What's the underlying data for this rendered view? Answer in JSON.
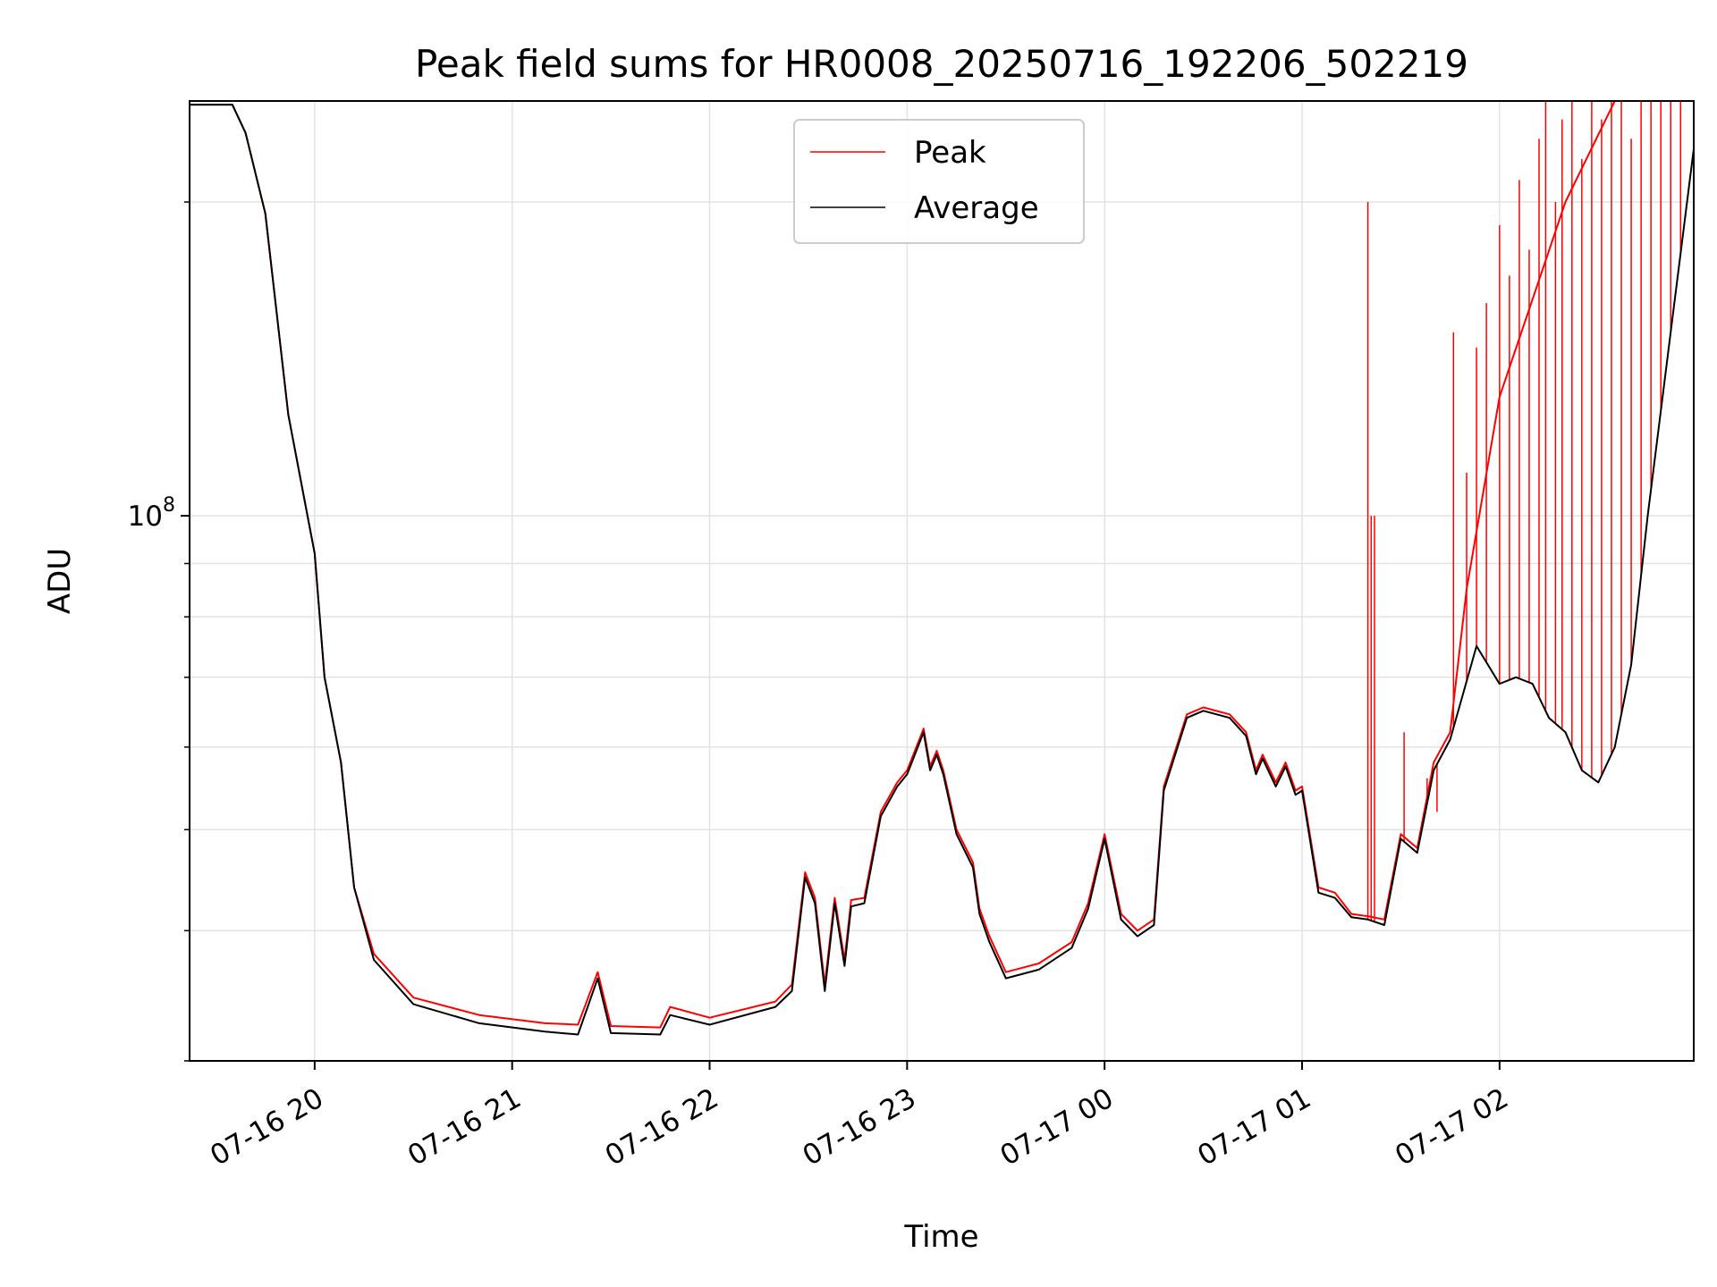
{
  "chart_data": {
    "type": "line",
    "title": "Peak field sums for HR0008_20250716_192206_502219",
    "xlabel": "Time",
    "ylabel": "ADU",
    "yscale": "log",
    "grid": true,
    "legend_position": "top-center",
    "x_tick_labels": [
      "07-16 20",
      "07-16 21",
      "07-16 22",
      "07-16 23",
      "07-17 00",
      "07-17 01",
      "07-17 02"
    ],
    "y_tick_label": {
      "base": "10",
      "exponent": "8"
    },
    "xlim": [
      "2025-07-16T19:22",
      "2025-07-17T02:59"
    ],
    "ylim": [
      30000000,
      250000000
    ],
    "series": [
      {
        "name": "Peak",
        "color": "#ff0000",
        "points": [
          [
            "2025-07-16T19:22",
            248000000
          ],
          [
            "2025-07-16T19:35",
            248000000
          ],
          [
            "2025-07-16T19:39",
            233000000
          ],
          [
            "2025-07-16T19:45",
            195000000
          ],
          [
            "2025-07-16T19:52",
            125000000
          ],
          [
            "2025-07-16T20:00",
            92000000
          ],
          [
            "2025-07-16T20:03",
            70000000
          ],
          [
            "2025-07-16T20:08",
            58000000
          ],
          [
            "2025-07-16T20:12",
            44000000
          ],
          [
            "2025-07-16T20:18",
            38000000
          ],
          [
            "2025-07-16T20:30",
            34500000
          ],
          [
            "2025-07-16T20:50",
            33200000
          ],
          [
            "2025-07-16T21:10",
            32600000
          ],
          [
            "2025-07-16T21:20",
            32500000
          ],
          [
            "2025-07-16T21:26",
            36500000
          ],
          [
            "2025-07-16T21:30",
            32400000
          ],
          [
            "2025-07-16T21:45",
            32300000
          ],
          [
            "2025-07-16T21:48",
            33800000
          ],
          [
            "2025-07-16T22:00",
            33000000
          ],
          [
            "2025-07-16T22:20",
            34200000
          ],
          [
            "2025-07-16T22:25",
            35500000
          ],
          [
            "2025-07-16T22:29",
            45500000
          ],
          [
            "2025-07-16T22:32",
            43000000
          ],
          [
            "2025-07-16T22:35",
            35500000
          ],
          [
            "2025-07-16T22:38",
            43000000
          ],
          [
            "2025-07-16T22:41",
            37500000
          ],
          [
            "2025-07-16T22:43",
            42800000
          ],
          [
            "2025-07-16T22:47",
            43000000
          ],
          [
            "2025-07-16T22:52",
            52000000
          ],
          [
            "2025-07-16T22:57",
            55500000
          ],
          [
            "2025-07-16T23:00",
            57000000
          ],
          [
            "2025-07-16T23:05",
            62500000
          ],
          [
            "2025-07-16T23:07",
            57500000
          ],
          [
            "2025-07-16T23:09",
            59500000
          ],
          [
            "2025-07-16T23:11",
            57000000
          ],
          [
            "2025-07-16T23:15",
            50000000
          ],
          [
            "2025-07-16T23:20",
            46500000
          ],
          [
            "2025-07-16T23:22",
            42000000
          ],
          [
            "2025-07-16T23:25",
            39500000
          ],
          [
            "2025-07-16T23:30",
            36500000
          ],
          [
            "2025-07-16T23:40",
            37200000
          ],
          [
            "2025-07-16T23:50",
            39000000
          ],
          [
            "2025-07-16T23:55",
            42500000
          ],
          [
            "2025-07-17T00:00",
            49500000
          ],
          [
            "2025-07-17T00:05",
            41500000
          ],
          [
            "2025-07-17T00:10",
            40000000
          ],
          [
            "2025-07-17T00:15",
            41000000
          ],
          [
            "2025-07-17T00:18",
            55000000
          ],
          [
            "2025-07-17T00:25",
            64500000
          ],
          [
            "2025-07-17T00:30",
            65500000
          ],
          [
            "2025-07-17T00:38",
            64500000
          ],
          [
            "2025-07-17T00:43",
            62000000
          ],
          [
            "2025-07-17T00:46",
            57000000
          ],
          [
            "2025-07-17T00:48",
            59000000
          ],
          [
            "2025-07-17T00:52",
            55500000
          ],
          [
            "2025-07-17T00:55",
            58000000
          ],
          [
            "2025-07-17T00:58",
            54500000
          ],
          [
            "2025-07-17T01:00",
            55000000
          ],
          [
            "2025-07-17T01:05",
            44000000
          ],
          [
            "2025-07-17T01:10",
            43500000
          ],
          [
            "2025-07-17T01:15",
            41500000
          ],
          [
            "2025-07-17T01:20",
            41300000
          ],
          [
            "2025-07-17T01:25",
            41000000
          ],
          [
            "2025-07-17T01:30",
            49500000
          ],
          [
            "2025-07-17T01:35",
            48000000
          ],
          [
            "2025-07-17T01:40",
            58000000
          ],
          [
            "2025-07-17T01:45",
            62000000
          ],
          [
            "2025-07-17T01:50",
            85000000
          ],
          [
            "2025-07-17T02:00",
            130000000
          ],
          [
            "2025-07-17T02:20",
            200000000
          ],
          [
            "2025-07-17T02:35",
            250000000
          ],
          [
            "2025-07-17T02:59",
            250000000
          ]
        ]
      },
      {
        "name": "Average",
        "color": "#000000",
        "points": [
          [
            "2025-07-16T19:22",
            248000000
          ],
          [
            "2025-07-16T19:35",
            248000000
          ],
          [
            "2025-07-16T19:39",
            233000000
          ],
          [
            "2025-07-16T19:45",
            195000000
          ],
          [
            "2025-07-16T19:52",
            125000000
          ],
          [
            "2025-07-16T20:00",
            92000000
          ],
          [
            "2025-07-16T20:03",
            70000000
          ],
          [
            "2025-07-16T20:08",
            58000000
          ],
          [
            "2025-07-16T20:12",
            44000000
          ],
          [
            "2025-07-16T20:18",
            37500000
          ],
          [
            "2025-07-16T20:30",
            34000000
          ],
          [
            "2025-07-16T20:50",
            32600000
          ],
          [
            "2025-07-16T21:10",
            32000000
          ],
          [
            "2025-07-16T21:20",
            31800000
          ],
          [
            "2025-07-16T21:26",
            36000000
          ],
          [
            "2025-07-16T21:30",
            31900000
          ],
          [
            "2025-07-16T21:45",
            31800000
          ],
          [
            "2025-07-16T21:48",
            33200000
          ],
          [
            "2025-07-16T22:00",
            32500000
          ],
          [
            "2025-07-16T22:20",
            33800000
          ],
          [
            "2025-07-16T22:25",
            35000000
          ],
          [
            "2025-07-16T22:29",
            45000000
          ],
          [
            "2025-07-16T22:32",
            42500000
          ],
          [
            "2025-07-16T22:35",
            35000000
          ],
          [
            "2025-07-16T22:38",
            42500000
          ],
          [
            "2025-07-16T22:41",
            37000000
          ],
          [
            "2025-07-16T22:43",
            42200000
          ],
          [
            "2025-07-16T22:47",
            42500000
          ],
          [
            "2025-07-16T22:52",
            51500000
          ],
          [
            "2025-07-16T22:57",
            55000000
          ],
          [
            "2025-07-16T23:00",
            56500000
          ],
          [
            "2025-07-16T23:05",
            62000000
          ],
          [
            "2025-07-16T23:07",
            57000000
          ],
          [
            "2025-07-16T23:09",
            59000000
          ],
          [
            "2025-07-16T23:11",
            56500000
          ],
          [
            "2025-07-16T23:15",
            49500000
          ],
          [
            "2025-07-16T23:20",
            46000000
          ],
          [
            "2025-07-16T23:22",
            41500000
          ],
          [
            "2025-07-16T23:25",
            39000000
          ],
          [
            "2025-07-16T23:30",
            36000000
          ],
          [
            "2025-07-16T23:40",
            36700000
          ],
          [
            "2025-07-16T23:50",
            38500000
          ],
          [
            "2025-07-16T23:55",
            42000000
          ],
          [
            "2025-07-17T00:00",
            49000000
          ],
          [
            "2025-07-17T00:05",
            41000000
          ],
          [
            "2025-07-17T00:10",
            39500000
          ],
          [
            "2025-07-17T00:15",
            40500000
          ],
          [
            "2025-07-17T00:18",
            54500000
          ],
          [
            "2025-07-17T00:25",
            64000000
          ],
          [
            "2025-07-17T00:30",
            65000000
          ],
          [
            "2025-07-17T00:38",
            64000000
          ],
          [
            "2025-07-17T00:43",
            61500000
          ],
          [
            "2025-07-17T00:46",
            56500000
          ],
          [
            "2025-07-17T00:48",
            58500000
          ],
          [
            "2025-07-17T00:52",
            55000000
          ],
          [
            "2025-07-17T00:55",
            57500000
          ],
          [
            "2025-07-17T00:58",
            54000000
          ],
          [
            "2025-07-17T01:00",
            54500000
          ],
          [
            "2025-07-17T01:05",
            43500000
          ],
          [
            "2025-07-17T01:10",
            43000000
          ],
          [
            "2025-07-17T01:15",
            41200000
          ],
          [
            "2025-07-17T01:20",
            41000000
          ],
          [
            "2025-07-17T01:25",
            40500000
          ],
          [
            "2025-07-17T01:30",
            49000000
          ],
          [
            "2025-07-17T01:35",
            47500000
          ],
          [
            "2025-07-17T01:40",
            57000000
          ],
          [
            "2025-07-17T01:45",
            61000000
          ],
          [
            "2025-07-17T01:53",
            75000000
          ],
          [
            "2025-07-17T02:00",
            69000000
          ],
          [
            "2025-07-17T02:05",
            70000000
          ],
          [
            "2025-07-17T02:10",
            69000000
          ],
          [
            "2025-07-17T02:15",
            64000000
          ],
          [
            "2025-07-17T02:20",
            62000000
          ],
          [
            "2025-07-17T02:25",
            57000000
          ],
          [
            "2025-07-17T02:30",
            55500000
          ],
          [
            "2025-07-17T02:35",
            60000000
          ],
          [
            "2025-07-17T02:40",
            72000000
          ],
          [
            "2025-07-17T02:45",
            100000000
          ],
          [
            "2025-07-17T02:52",
            150000000
          ],
          [
            "2025-07-17T02:59",
            225000000
          ]
        ]
      }
    ],
    "spikes": {
      "name": "Peak",
      "points": [
        [
          "2025-07-17T01:20",
          200000000
        ],
        [
          "2025-07-17T01:21",
          100000000
        ],
        [
          "2025-07-17T01:22",
          100000000
        ],
        [
          "2025-07-17T01:31",
          62000000
        ],
        [
          "2025-07-17T01:38",
          56000000
        ],
        [
          "2025-07-17T01:41",
          52000000
        ],
        [
          "2025-07-17T01:46",
          150000000
        ],
        [
          "2025-07-17T01:50",
          110000000
        ],
        [
          "2025-07-17T01:53",
          145000000
        ],
        [
          "2025-07-17T01:56",
          160000000
        ],
        [
          "2025-07-17T02:00",
          190000000
        ],
        [
          "2025-07-17T02:03",
          170000000
        ],
        [
          "2025-07-17T02:06",
          210000000
        ],
        [
          "2025-07-17T02:09",
          180000000
        ],
        [
          "2025-07-17T02:12",
          230000000
        ],
        [
          "2025-07-17T02:14",
          250000000
        ],
        [
          "2025-07-17T02:17",
          200000000
        ],
        [
          "2025-07-17T02:19",
          240000000
        ],
        [
          "2025-07-17T02:22",
          250000000
        ],
        [
          "2025-07-17T02:25",
          220000000
        ],
        [
          "2025-07-17T02:28",
          250000000
        ],
        [
          "2025-07-17T02:31",
          240000000
        ],
        [
          "2025-07-17T02:34",
          250000000
        ],
        [
          "2025-07-17T02:37",
          250000000
        ],
        [
          "2025-07-17T02:40",
          230000000
        ],
        [
          "2025-07-17T02:43",
          250000000
        ],
        [
          "2025-07-17T02:46",
          250000000
        ],
        [
          "2025-07-17T02:49",
          250000000
        ],
        [
          "2025-07-17T02:52",
          250000000
        ],
        [
          "2025-07-17T02:55",
          250000000
        ]
      ]
    }
  }
}
